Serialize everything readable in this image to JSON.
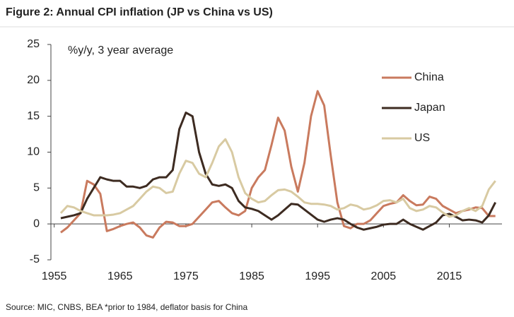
{
  "chart_data": {
    "type": "line",
    "title": "Figure 2: Annual CPI inflation (JP vs China vs US)",
    "annotation": "%y/y, 3 year average",
    "source": "Source: MIC, CNBS, BEA *prior to 1984, deflator basis for China",
    "x": [
      1956,
      1957,
      1958,
      1959,
      1960,
      1961,
      1962,
      1963,
      1964,
      1965,
      1966,
      1967,
      1968,
      1969,
      1970,
      1971,
      1972,
      1973,
      1974,
      1975,
      1976,
      1977,
      1978,
      1979,
      1980,
      1981,
      1982,
      1983,
      1984,
      1985,
      1986,
      1987,
      1988,
      1989,
      1990,
      1991,
      1992,
      1993,
      1994,
      1995,
      1996,
      1997,
      1998,
      1999,
      2000,
      2001,
      2002,
      2003,
      2004,
      2005,
      2006,
      2007,
      2008,
      2009,
      2010,
      2011,
      2012,
      2013,
      2014,
      2015,
      2016,
      2017,
      2018,
      2019,
      2020,
      2021,
      2022
    ],
    "series": [
      {
        "name": "China",
        "color": "#c97a5e",
        "values": [
          -1.2,
          -0.5,
          0.5,
          1.5,
          6.0,
          5.5,
          4.2,
          -1.0,
          -0.7,
          -0.3,
          0,
          0.2,
          -0.5,
          -1.6,
          -1.9,
          -0.5,
          0.3,
          0.2,
          -0.3,
          -0.3,
          0,
          1.0,
          2.0,
          3.0,
          3.2,
          2.3,
          1.5,
          1.2,
          1.8,
          5.0,
          6.5,
          7.5,
          11.0,
          14.8,
          13.0,
          8.0,
          4.5,
          8.5,
          15.0,
          18.5,
          16.5,
          9.5,
          3.0,
          -0.3,
          -0.6,
          0,
          0,
          0.5,
          1.5,
          2.5,
          2.8,
          3.0,
          4.0,
          3.2,
          2.6,
          2.7,
          3.8,
          3.5,
          2.5,
          2.0,
          1.5,
          1.8,
          2.0,
          2.3,
          2.2,
          1.1,
          1.1
        ]
      },
      {
        "name": "Japan",
        "color": "#3d2b21",
        "values": [
          0.8,
          1.0,
          1.2,
          1.5,
          3.5,
          5.0,
          6.5,
          6.2,
          6.0,
          6.0,
          5.2,
          5.2,
          5.0,
          5.3,
          6.2,
          6.5,
          6.5,
          7.5,
          13.2,
          15.5,
          15.0,
          10.0,
          7.0,
          5.5,
          5.3,
          5.5,
          5.0,
          3.2,
          2.3,
          2.1,
          1.8,
          1.2,
          0.6,
          1.2,
          2.0,
          2.8,
          2.7,
          2.0,
          1.3,
          0.6,
          0.3,
          0.6,
          0.8,
          0.6,
          0,
          -0.5,
          -0.8,
          -0.6,
          -0.4,
          -0.1,
          0,
          0,
          0.6,
          0,
          -0.4,
          -0.8,
          -0.3,
          0.2,
          1.2,
          1.4,
          1.0,
          0.5,
          0.6,
          0.5,
          0.2,
          1.2,
          3.0
        ]
      },
      {
        "name": "US",
        "color": "#d8caa2",
        "values": [
          1.5,
          2.5,
          2.3,
          1.8,
          1.5,
          1.2,
          1.2,
          1.2,
          1.3,
          1.5,
          2.0,
          2.5,
          3.5,
          4.5,
          5.2,
          5.0,
          4.3,
          4.5,
          7.0,
          8.8,
          8.5,
          7.0,
          6.5,
          8.5,
          10.8,
          11.8,
          10.0,
          6.5,
          4.3,
          3.5,
          3.0,
          3.2,
          4.0,
          4.7,
          4.8,
          4.5,
          3.8,
          3.0,
          2.8,
          2.8,
          2.7,
          2.5,
          2.0,
          2.2,
          2.7,
          2.5,
          2.0,
          2.2,
          2.6,
          3.2,
          3.3,
          3.0,
          3.5,
          2.2,
          1.8,
          2.0,
          2.5,
          2.3,
          1.6,
          1.0,
          1.2,
          1.8,
          2.2,
          1.8,
          2.5,
          4.8,
          6.0
        ]
      }
    ],
    "xlim": [
      1954.5,
      2023
    ],
    "xticks": [
      1955,
      1965,
      1975,
      1985,
      1995,
      2005,
      2015
    ],
    "ylim": [
      -5,
      25
    ],
    "yticks": [
      -5,
      0,
      5,
      10,
      15,
      20,
      25
    ],
    "negative_tick_color": "#e3001b",
    "legend": "upper right",
    "grid": false
  }
}
